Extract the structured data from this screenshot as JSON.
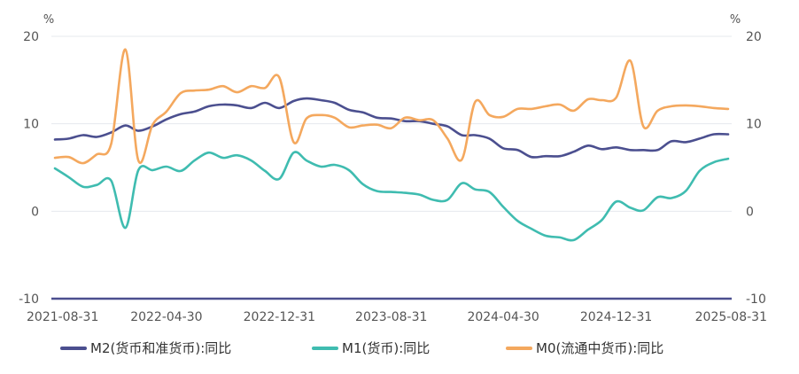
{
  "chart_data": {
    "type": "line",
    "y_unit_left": "%",
    "y_unit_right": "%",
    "ylim": [
      -10,
      20
    ],
    "yticks": [
      -10,
      0,
      10,
      20
    ],
    "ytick_labels": [
      "-10",
      "0",
      "10",
      "20"
    ],
    "x_range": [
      "2021-08-31",
      "2025-08-31"
    ],
    "x_ticks": [
      "2021-08-31",
      "2022-04-30",
      "2022-12-31",
      "2023-08-31",
      "2024-04-30",
      "2024-12-31",
      "2025-08-31"
    ],
    "grid": true,
    "legend_position": "bottom",
    "series": [
      {
        "name": "M2(货币和准货币):同比",
        "color": "#4b4f8f",
        "points": [
          [
            "2021-08-31",
            8.2
          ],
          [
            "2021-09-30",
            8.3
          ],
          [
            "2021-10-31",
            8.7
          ],
          [
            "2021-11-30",
            8.5
          ],
          [
            "2021-12-31",
            9.0
          ],
          [
            "2022-01-31",
            9.8
          ],
          [
            "2022-02-28",
            9.2
          ],
          [
            "2022-03-31",
            9.7
          ],
          [
            "2022-04-30",
            10.5
          ],
          [
            "2022-05-31",
            11.1
          ],
          [
            "2022-06-30",
            11.4
          ],
          [
            "2022-07-31",
            12.0
          ],
          [
            "2022-08-31",
            12.2
          ],
          [
            "2022-09-30",
            12.1
          ],
          [
            "2022-10-31",
            11.8
          ],
          [
            "2022-11-30",
            12.4
          ],
          [
            "2022-12-31",
            11.8
          ],
          [
            "2023-01-31",
            12.6
          ],
          [
            "2023-02-28",
            12.9
          ],
          [
            "2023-03-31",
            12.7
          ],
          [
            "2023-04-30",
            12.4
          ],
          [
            "2023-05-31",
            11.6
          ],
          [
            "2023-06-30",
            11.3
          ],
          [
            "2023-07-31",
            10.7
          ],
          [
            "2023-08-31",
            10.6
          ],
          [
            "2023-09-30",
            10.3
          ],
          [
            "2023-10-31",
            10.3
          ],
          [
            "2023-11-30",
            10.0
          ],
          [
            "2023-12-31",
            9.7
          ],
          [
            "2024-01-31",
            8.7
          ],
          [
            "2024-02-29",
            8.7
          ],
          [
            "2024-03-31",
            8.3
          ],
          [
            "2024-04-30",
            7.2
          ],
          [
            "2024-05-31",
            7.0
          ],
          [
            "2024-06-30",
            6.2
          ],
          [
            "2024-07-31",
            6.3
          ],
          [
            "2024-08-31",
            6.3
          ],
          [
            "2024-09-30",
            6.8
          ],
          [
            "2024-10-31",
            7.5
          ],
          [
            "2024-11-30",
            7.1
          ],
          [
            "2024-12-31",
            7.3
          ],
          [
            "2025-01-31",
            7.0
          ],
          [
            "2025-02-28",
            7.0
          ],
          [
            "2025-03-31",
            7.0
          ],
          [
            "2025-04-30",
            8.0
          ],
          [
            "2025-05-31",
            7.9
          ],
          [
            "2025-06-30",
            8.3
          ],
          [
            "2025-07-31",
            8.8
          ],
          [
            "2025-08-31",
            8.8
          ]
        ]
      },
      {
        "name": "M1(货币):同比",
        "color": "#3fbcb0",
        "points": [
          [
            "2021-08-31",
            4.9
          ],
          [
            "2021-09-30",
            3.9
          ],
          [
            "2021-10-31",
            2.8
          ],
          [
            "2021-11-30",
            3.0
          ],
          [
            "2021-12-31",
            3.5
          ],
          [
            "2022-01-31",
            -1.9
          ],
          [
            "2022-02-28",
            4.7
          ],
          [
            "2022-03-31",
            4.7
          ],
          [
            "2022-04-30",
            5.1
          ],
          [
            "2022-05-31",
            4.6
          ],
          [
            "2022-06-30",
            5.8
          ],
          [
            "2022-07-31",
            6.7
          ],
          [
            "2022-08-31",
            6.1
          ],
          [
            "2022-09-30",
            6.4
          ],
          [
            "2022-10-31",
            5.8
          ],
          [
            "2022-11-30",
            4.6
          ],
          [
            "2022-12-31",
            3.7
          ],
          [
            "2023-01-31",
            6.7
          ],
          [
            "2023-02-28",
            5.8
          ],
          [
            "2023-03-31",
            5.1
          ],
          [
            "2023-04-30",
            5.3
          ],
          [
            "2023-05-31",
            4.7
          ],
          [
            "2023-06-30",
            3.1
          ],
          [
            "2023-07-31",
            2.3
          ],
          [
            "2023-08-31",
            2.2
          ],
          [
            "2023-09-30",
            2.1
          ],
          [
            "2023-10-31",
            1.9
          ],
          [
            "2023-11-30",
            1.3
          ],
          [
            "2023-12-31",
            1.3
          ],
          [
            "2024-01-31",
            3.2
          ],
          [
            "2024-02-29",
            2.5
          ],
          [
            "2024-03-31",
            2.2
          ],
          [
            "2024-04-30",
            0.5
          ],
          [
            "2024-05-31",
            -1.1
          ],
          [
            "2024-06-30",
            -2.0
          ],
          [
            "2024-07-31",
            -2.8
          ],
          [
            "2024-08-31",
            -3.0
          ],
          [
            "2024-09-30",
            -3.3
          ],
          [
            "2024-10-31",
            -2.1
          ],
          [
            "2024-11-30",
            -1.0
          ],
          [
            "2024-12-31",
            1.1
          ],
          [
            "2025-01-31",
            0.4
          ],
          [
            "2025-02-28",
            0.1
          ],
          [
            "2025-03-31",
            1.6
          ],
          [
            "2025-04-30",
            1.5
          ],
          [
            "2025-05-31",
            2.3
          ],
          [
            "2025-06-30",
            4.6
          ],
          [
            "2025-07-31",
            5.6
          ],
          [
            "2025-08-31",
            6.0
          ]
        ]
      },
      {
        "name": "M0(流通中货币):同比",
        "color": "#f4a85e",
        "points": [
          [
            "2021-08-31",
            6.1
          ],
          [
            "2021-09-30",
            6.2
          ],
          [
            "2021-10-31",
            5.5
          ],
          [
            "2021-11-30",
            6.5
          ],
          [
            "2021-12-31",
            7.7
          ],
          [
            "2022-01-31",
            18.5
          ],
          [
            "2022-02-28",
            5.8
          ],
          [
            "2022-03-31",
            9.9
          ],
          [
            "2022-04-30",
            11.4
          ],
          [
            "2022-05-31",
            13.5
          ],
          [
            "2022-06-30",
            13.8
          ],
          [
            "2022-07-31",
            13.9
          ],
          [
            "2022-08-31",
            14.3
          ],
          [
            "2022-09-30",
            13.6
          ],
          [
            "2022-10-31",
            14.3
          ],
          [
            "2022-11-30",
            14.1
          ],
          [
            "2022-12-31",
            15.3
          ],
          [
            "2023-01-31",
            7.9
          ],
          [
            "2023-02-28",
            10.6
          ],
          [
            "2023-03-31",
            11.0
          ],
          [
            "2023-04-30",
            10.7
          ],
          [
            "2023-05-31",
            9.6
          ],
          [
            "2023-06-30",
            9.8
          ],
          [
            "2023-07-31",
            9.9
          ],
          [
            "2023-08-31",
            9.5
          ],
          [
            "2023-09-30",
            10.7
          ],
          [
            "2023-10-31",
            10.4
          ],
          [
            "2023-11-30",
            10.4
          ],
          [
            "2023-12-31",
            8.3
          ],
          [
            "2024-01-31",
            5.9
          ],
          [
            "2024-02-29",
            12.5
          ],
          [
            "2024-03-31",
            11.0
          ],
          [
            "2024-04-30",
            10.8
          ],
          [
            "2024-05-31",
            11.7
          ],
          [
            "2024-06-30",
            11.7
          ],
          [
            "2024-07-31",
            12.0
          ],
          [
            "2024-08-31",
            12.2
          ],
          [
            "2024-09-30",
            11.5
          ],
          [
            "2024-10-31",
            12.8
          ],
          [
            "2024-11-30",
            12.7
          ],
          [
            "2024-12-31",
            13.0
          ],
          [
            "2025-01-31",
            17.2
          ],
          [
            "2025-02-28",
            9.7
          ],
          [
            "2025-03-31",
            11.5
          ],
          [
            "2025-04-30",
            12.0
          ],
          [
            "2025-05-31",
            12.1
          ],
          [
            "2025-06-30",
            12.0
          ],
          [
            "2025-07-31",
            11.8
          ],
          [
            "2025-08-31",
            11.7
          ]
        ]
      }
    ]
  }
}
